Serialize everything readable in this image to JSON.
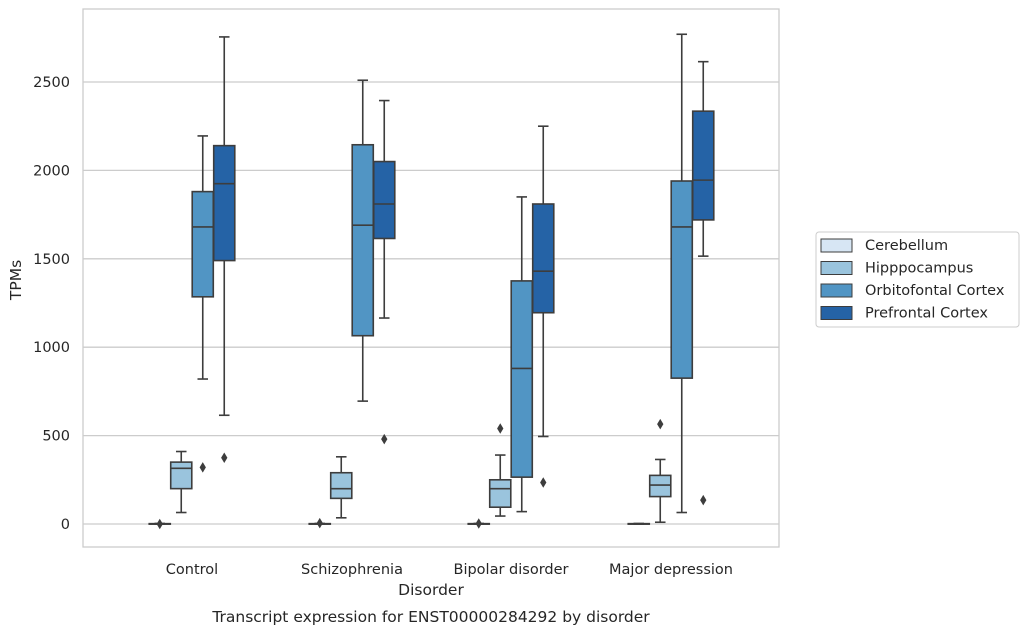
{
  "chart_data": {
    "type": "box",
    "title": "",
    "caption": "Transcript expression for ENST00000284292 by disorder",
    "xlabel": "Disorder",
    "ylabel": "TPMs",
    "ylim": [
      -130,
      2920
    ],
    "yticks": [
      0,
      500,
      1000,
      1500,
      2000,
      2500
    ],
    "grid": "horizontal",
    "legend_position": "right",
    "categories": [
      "Control",
      "Schizophrenia",
      "Bipolar disorder",
      "Major depression"
    ],
    "series": [
      {
        "name": "Cerebellum",
        "color": "#d7e6f4",
        "boxes": [
          {
            "whislo": 0,
            "q1": 0,
            "med": 0,
            "q3": 2,
            "whishi": 3,
            "fliers": [
              0
            ]
          },
          {
            "whislo": 0,
            "q1": 0,
            "med": 0,
            "q3": 2,
            "whishi": 3,
            "fliers": [
              5
            ]
          },
          {
            "whislo": 0,
            "q1": 0,
            "med": 0,
            "q3": 2,
            "whishi": 3,
            "fliers": [
              3
            ]
          },
          {
            "whislo": 0,
            "q1": 0,
            "med": 0,
            "q3": 2,
            "whishi": 3,
            "fliers": []
          }
        ]
      },
      {
        "name": "Hipppocampus",
        "color": "#9ac4dd",
        "boxes": [
          {
            "whislo": 65,
            "q1": 200,
            "med": 315,
            "q3": 350,
            "whishi": 410,
            "fliers": []
          },
          {
            "whislo": 35,
            "q1": 145,
            "med": 200,
            "q3": 290,
            "whishi": 380,
            "fliers": []
          },
          {
            "whislo": 45,
            "q1": 95,
            "med": 200,
            "q3": 250,
            "whishi": 390,
            "fliers": [
              540
            ]
          },
          {
            "whislo": 10,
            "q1": 155,
            "med": 220,
            "q3": 275,
            "whishi": 365,
            "fliers": [
              565
            ]
          }
        ]
      },
      {
        "name": "Orbitofontal Cortex",
        "color": "#5195c4",
        "boxes": [
          {
            "whislo": 820,
            "q1": 1285,
            "med": 1680,
            "q3": 1880,
            "whishi": 2195,
            "fliers": [
              320
            ]
          },
          {
            "whislo": 695,
            "q1": 1065,
            "med": 1690,
            "q3": 2145,
            "whishi": 2510,
            "fliers": []
          },
          {
            "whislo": 70,
            "q1": 265,
            "med": 880,
            "q3": 1375,
            "whishi": 1850,
            "fliers": []
          },
          {
            "whislo": 65,
            "q1": 825,
            "med": 1680,
            "q3": 1940,
            "whishi": 2770,
            "fliers": []
          }
        ]
      },
      {
        "name": "Prefrontal Cortex",
        "color": "#2563a6",
        "boxes": [
          {
            "whislo": 615,
            "q1": 1490,
            "med": 1925,
            "q3": 2140,
            "whishi": 2755,
            "fliers": [
              375
            ]
          },
          {
            "whislo": 1165,
            "q1": 1615,
            "med": 1810,
            "q3": 2050,
            "whishi": 2395,
            "fliers": [
              480
            ]
          },
          {
            "whislo": 495,
            "q1": 1195,
            "med": 1430,
            "q3": 1810,
            "whishi": 2250,
            "fliers": [
              235
            ]
          },
          {
            "whislo": 1515,
            "q1": 1720,
            "med": 1945,
            "q3": 2335,
            "whishi": 2615,
            "fliers": [
              135
            ]
          }
        ]
      }
    ]
  }
}
